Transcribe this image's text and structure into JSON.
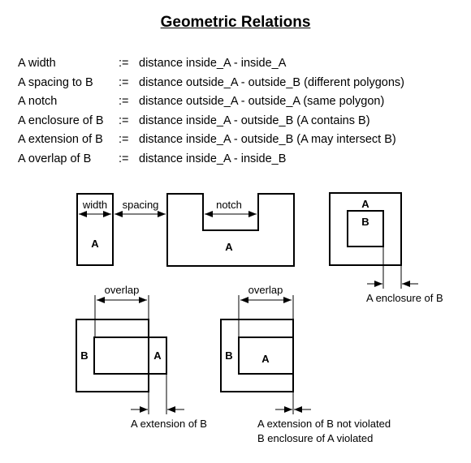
{
  "title": "Geometric Relations",
  "definitions": [
    {
      "term": "A width",
      "op": ":=",
      "expr": "distance inside_A - inside_A"
    },
    {
      "term": "A spacing to B",
      "op": ":=",
      "expr": "distance outside_A - outside_B (different polygons)"
    },
    {
      "term": "A notch",
      "op": ":=",
      "expr": "distance outside_A - outside_A (same polygon)"
    },
    {
      "term": "A enclosure of B",
      "op": ":=",
      "expr": "distance inside_A - outside_B (A contains B)"
    },
    {
      "term": "A extension of B",
      "op": ":=",
      "expr": "distance inside_A - outside_B (A may intersect B)"
    },
    {
      "term": "A overlap of B",
      "op": ":=",
      "expr": "distance inside_A - inside_B"
    }
  ],
  "diagram": {
    "width_label": "width",
    "spacing_label": "spacing",
    "notch_label": "notch",
    "a_label": "A",
    "b_label": "B",
    "overlap_label": "overlap",
    "enclosure_caption": "A enclosure of B",
    "extension_caption": "A extension of B",
    "not_violated_caption": "A extension of B not violated",
    "violated_caption": "B enclosure of A violated"
  }
}
